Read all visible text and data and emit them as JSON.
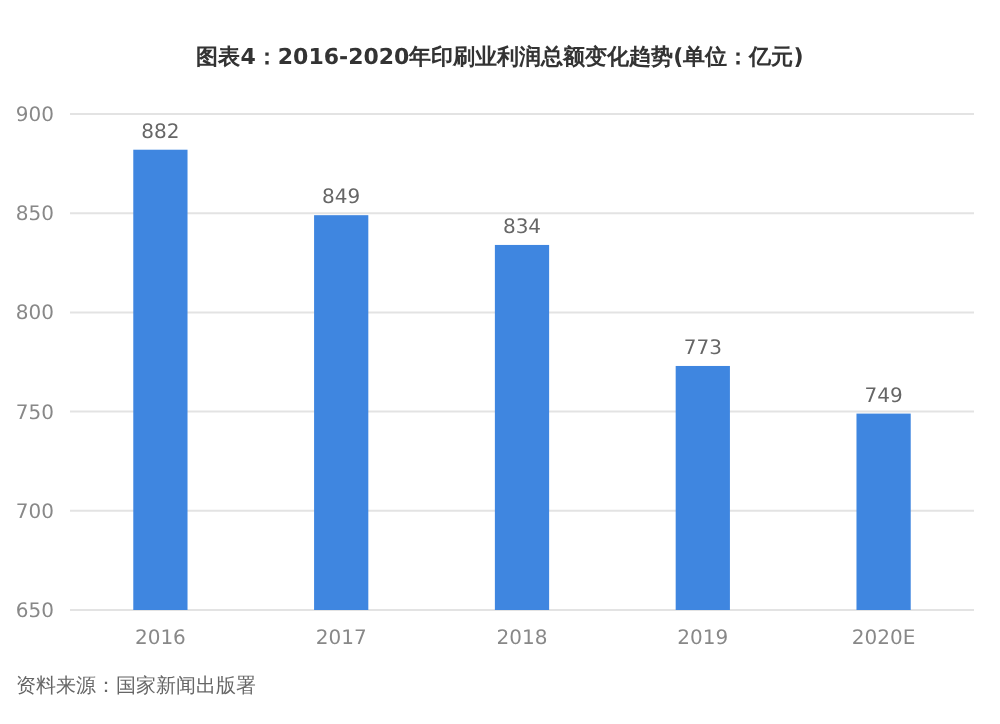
{
  "chart_data": {
    "type": "bar",
    "title": "图表4：2016-2020年印刷业利润总额变化趋势(单位：亿元)",
    "categories": [
      "2016",
      "2017",
      "2018",
      "2019",
      "2020E"
    ],
    "values": [
      882,
      849,
      834,
      773,
      749
    ],
    "color": "#3f86e0",
    "data_labels": true,
    "ylim": [
      650,
      900
    ],
    "yticks": [
      650,
      700,
      750,
      800,
      850,
      900
    ],
    "grid": "y",
    "annotations": [
      "资料来源：国家新闻出版署"
    ]
  }
}
